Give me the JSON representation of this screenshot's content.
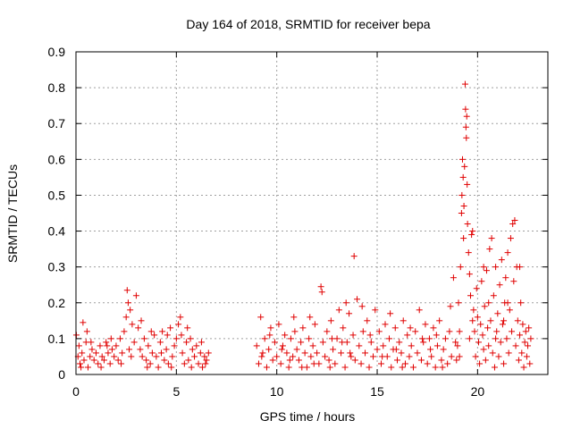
{
  "chart_data": {
    "type": "scatter",
    "title": "Day 164 of 2018, SRMTID for receiver bepa",
    "xlabel": "GPS time / hours",
    "ylabel": "SRMTID / TECUs",
    "xlim": [
      0,
      23.5
    ],
    "ylim": [
      0,
      0.9
    ],
    "xticks": [
      "0",
      "5",
      "10",
      "15",
      "20"
    ],
    "yticks": [
      "0",
      "0.1",
      "0.2",
      "0.3",
      "0.4",
      "0.5",
      "0.6",
      "0.7",
      "0.8",
      "0.9"
    ],
    "grid": true,
    "marker": "+",
    "color": "#e00000",
    "series": [
      {
        "name": "SRMTID",
        "points": [
          [
            0.02,
            0.11
          ],
          [
            0.1,
            0.05
          ],
          [
            0.15,
            0.08
          ],
          [
            0.2,
            0.03
          ],
          [
            0.3,
            0.06
          ],
          [
            0.35,
            0.145
          ],
          [
            0.4,
            0.04
          ],
          [
            0.5,
            0.09
          ],
          [
            0.6,
            0.02
          ],
          [
            0.7,
            0.05
          ],
          [
            0.8,
            0.07
          ],
          [
            0.9,
            0.04
          ],
          [
            1.0,
            0.06
          ],
          [
            1.1,
            0.03
          ],
          [
            1.2,
            0.08
          ],
          [
            1.3,
            0.05
          ],
          [
            1.4,
            0.04
          ],
          [
            1.5,
            0.09
          ],
          [
            1.6,
            0.06
          ],
          [
            1.7,
            0.03
          ],
          [
            1.8,
            0.07
          ],
          [
            1.9,
            0.05
          ],
          [
            2.0,
            0.08
          ],
          [
            2.1,
            0.04
          ],
          [
            2.2,
            0.1
          ],
          [
            2.3,
            0.06
          ],
          [
            2.4,
            0.12
          ],
          [
            2.5,
            0.16
          ],
          [
            2.55,
            0.235
          ],
          [
            2.6,
            0.2
          ],
          [
            2.7,
            0.18
          ],
          [
            2.8,
            0.14
          ],
          [
            2.9,
            0.09
          ],
          [
            3.0,
            0.22
          ],
          [
            3.1,
            0.13
          ],
          [
            3.2,
            0.07
          ],
          [
            3.3,
            0.05
          ],
          [
            3.4,
            0.1
          ],
          [
            3.5,
            0.04
          ],
          [
            3.6,
            0.08
          ],
          [
            3.7,
            0.03
          ],
          [
            3.8,
            0.06
          ],
          [
            3.9,
            0.11
          ],
          [
            4.0,
            0.05
          ],
          [
            4.1,
            0.02
          ],
          [
            4.2,
            0.09
          ],
          [
            4.3,
            0.12
          ],
          [
            4.4,
            0.04
          ],
          [
            4.5,
            0.07
          ],
          [
            4.6,
            0.03
          ],
          [
            4.7,
            0.13
          ],
          [
            4.8,
            0.05
          ],
          [
            4.9,
            0.08
          ],
          [
            5.0,
            0.1
          ],
          [
            5.1,
            0.14
          ],
          [
            5.2,
            0.16
          ],
          [
            5.3,
            0.06
          ],
          [
            5.4,
            0.03
          ],
          [
            5.5,
            0.09
          ],
          [
            5.6,
            0.04
          ],
          [
            5.7,
            0.1
          ],
          [
            5.8,
            0.07
          ],
          [
            5.9,
            0.05
          ],
          [
            6.0,
            0.08
          ],
          [
            6.1,
            0.03
          ],
          [
            6.2,
            0.06
          ],
          [
            6.3,
            0.02
          ],
          [
            6.4,
            0.05
          ],
          [
            6.5,
            0.04
          ],
          [
            6.6,
            0.06
          ],
          [
            0.25,
            0.02
          ],
          [
            0.75,
            0.09
          ],
          [
            1.25,
            0.02
          ],
          [
            1.75,
            0.1
          ],
          [
            2.25,
            0.03
          ],
          [
            2.75,
            0.05
          ],
          [
            3.25,
            0.15
          ],
          [
            3.75,
            0.12
          ],
          [
            4.25,
            0.06
          ],
          [
            4.75,
            0.02
          ],
          [
            5.25,
            0.11
          ],
          [
            5.75,
            0.02
          ],
          [
            6.25,
            0.09
          ],
          [
            0.55,
            0.12
          ],
          [
            1.55,
            0.08
          ],
          [
            2.65,
            0.07
          ],
          [
            3.55,
            0.02
          ],
          [
            4.55,
            0.11
          ],
          [
            5.55,
            0.13
          ],
          [
            6.45,
            0.03
          ],
          [
            9.0,
            0.08
          ],
          [
            9.1,
            0.03
          ],
          [
            9.2,
            0.16
          ],
          [
            9.3,
            0.06
          ],
          [
            9.4,
            0.1
          ],
          [
            9.5,
            0.02
          ],
          [
            9.6,
            0.07
          ],
          [
            9.7,
            0.13
          ],
          [
            9.8,
            0.04
          ],
          [
            9.9,
            0.09
          ],
          [
            10.0,
            0.05
          ],
          [
            10.1,
            0.14
          ],
          [
            10.2,
            0.03
          ],
          [
            10.3,
            0.08
          ],
          [
            10.4,
            0.11
          ],
          [
            10.5,
            0.06
          ],
          [
            10.6,
            0.02
          ],
          [
            10.7,
            0.1
          ],
          [
            10.8,
            0.05
          ],
          [
            10.9,
            0.12
          ],
          [
            11.0,
            0.07
          ],
          [
            11.1,
            0.04
          ],
          [
            11.2,
            0.09
          ],
          [
            11.3,
            0.13
          ],
          [
            11.4,
            0.06
          ],
          [
            11.5,
            0.02
          ],
          [
            11.6,
            0.1
          ],
          [
            11.7,
            0.05
          ],
          [
            11.8,
            0.08
          ],
          [
            11.9,
            0.14
          ],
          [
            12.0,
            0.06
          ],
          [
            12.1,
            0.03
          ],
          [
            12.2,
            0.245
          ],
          [
            12.25,
            0.23
          ],
          [
            12.3,
            0.09
          ],
          [
            12.4,
            0.05
          ],
          [
            12.5,
            0.12
          ],
          [
            12.6,
            0.04
          ],
          [
            12.7,
            0.15
          ],
          [
            12.8,
            0.07
          ],
          [
            12.9,
            0.03
          ],
          [
            13.0,
            0.1
          ],
          [
            13.1,
            0.18
          ],
          [
            13.2,
            0.06
          ],
          [
            13.3,
            0.13
          ],
          [
            13.4,
            0.02
          ],
          [
            13.5,
            0.09
          ],
          [
            13.6,
            0.17
          ],
          [
            13.7,
            0.05
          ],
          [
            13.8,
            0.11
          ],
          [
            13.85,
            0.33
          ],
          [
            13.9,
            0.04
          ],
          [
            14.0,
            0.21
          ],
          [
            14.1,
            0.08
          ],
          [
            14.2,
            0.03
          ],
          [
            14.3,
            0.12
          ],
          [
            14.4,
            0.06
          ],
          [
            14.5,
            0.15
          ],
          [
            14.6,
            0.02
          ],
          [
            14.7,
            0.09
          ],
          [
            14.8,
            0.05
          ],
          [
            14.9,
            0.18
          ],
          [
            15.0,
            0.07
          ],
          [
            15.1,
            0.12
          ],
          [
            15.2,
            0.03
          ],
          [
            15.3,
            0.08
          ],
          [
            15.4,
            0.14
          ],
          [
            15.5,
            0.05
          ],
          [
            15.6,
            0.1
          ],
          [
            15.7,
            0.02
          ],
          [
            15.8,
            0.07
          ],
          [
            15.9,
            0.13
          ],
          [
            16.0,
            0.04
          ],
          [
            16.1,
            0.09
          ],
          [
            16.2,
            0.06
          ],
          [
            16.3,
            0.15
          ],
          [
            16.4,
            0.03
          ],
          [
            16.5,
            0.11
          ],
          [
            16.6,
            0.05
          ],
          [
            16.7,
            0.08
          ],
          [
            16.8,
            0.02
          ],
          [
            16.9,
            0.12
          ],
          [
            17.0,
            0.06
          ],
          [
            17.1,
            0.18
          ],
          [
            17.2,
            0.04
          ],
          [
            17.3,
            0.09
          ],
          [
            17.4,
            0.14
          ],
          [
            17.5,
            0.03
          ],
          [
            17.6,
            0.1
          ],
          [
            17.7,
            0.05
          ],
          [
            17.8,
            0.13
          ],
          [
            17.9,
            0.02
          ],
          [
            18.0,
            0.08
          ],
          [
            18.1,
            0.15
          ],
          [
            18.2,
            0.04
          ],
          [
            18.3,
            0.07
          ],
          [
            18.4,
            0.1
          ],
          [
            18.5,
            0.03
          ],
          [
            18.6,
            0.12
          ],
          [
            18.7,
            0.05
          ],
          [
            18.8,
            0.27
          ],
          [
            18.9,
            0.09
          ],
          [
            9.25,
            0.05
          ],
          [
            10.25,
            0.07
          ],
          [
            11.25,
            0.02
          ],
          [
            12.75,
            0.1
          ],
          [
            13.25,
            0.09
          ],
          [
            14.25,
            0.19
          ],
          [
            15.25,
            0.05
          ],
          [
            16.25,
            0.02
          ],
          [
            17.25,
            0.1
          ],
          [
            18.25,
            0.02
          ],
          [
            9.65,
            0.11
          ],
          [
            10.65,
            0.04
          ],
          [
            11.65,
            0.16
          ],
          [
            12.65,
            0.02
          ],
          [
            13.65,
            0.06
          ],
          [
            14.65,
            0.11
          ],
          [
            15.65,
            0.17
          ],
          [
            16.65,
            0.13
          ],
          [
            17.65,
            0.07
          ],
          [
            18.65,
            0.19
          ],
          [
            10.85,
            0.16
          ],
          [
            11.85,
            0.03
          ],
          [
            13.45,
            0.2
          ],
          [
            15.95,
            0.07
          ],
          [
            17.95,
            0.11
          ],
          [
            18.95,
            0.04
          ],
          [
            19.0,
            0.08
          ],
          [
            19.05,
            0.2
          ],
          [
            19.1,
            0.12
          ],
          [
            19.15,
            0.3
          ],
          [
            19.2,
            0.45
          ],
          [
            19.22,
            0.5
          ],
          [
            19.25,
            0.6
          ],
          [
            19.28,
            0.55
          ],
          [
            19.3,
            0.38
          ],
          [
            19.32,
            0.47
          ],
          [
            19.35,
            0.58
          ],
          [
            19.38,
            0.81
          ],
          [
            19.4,
            0.74
          ],
          [
            19.42,
            0.69
          ],
          [
            19.44,
            0.66
          ],
          [
            19.46,
            0.72
          ],
          [
            19.48,
            0.53
          ],
          [
            19.5,
            0.42
          ],
          [
            19.55,
            0.34
          ],
          [
            19.6,
            0.28
          ],
          [
            19.65,
            0.22
          ],
          [
            19.7,
            0.39
          ],
          [
            19.75,
            0.4
          ],
          [
            19.8,
            0.18
          ],
          [
            19.85,
            0.12
          ],
          [
            19.9,
            0.05
          ],
          [
            19.95,
            0.24
          ],
          [
            20.0,
            0.16
          ],
          [
            20.05,
            0.09
          ],
          [
            20.1,
            0.03
          ],
          [
            20.15,
            0.14
          ],
          [
            20.2,
            0.26
          ],
          [
            20.25,
            0.11
          ],
          [
            20.3,
            0.07
          ],
          [
            20.35,
            0.19
          ],
          [
            20.4,
            0.04
          ],
          [
            20.45,
            0.29
          ],
          [
            20.5,
            0.13
          ],
          [
            20.55,
            0.08
          ],
          [
            20.6,
            0.35
          ],
          [
            20.65,
            0.15
          ],
          [
            20.7,
            0.38
          ],
          [
            20.75,
            0.06
          ],
          [
            20.8,
            0.22
          ],
          [
            20.85,
            0.02
          ],
          [
            20.9,
            0.3
          ],
          [
            20.95,
            0.12
          ],
          [
            21.0,
            0.17
          ],
          [
            21.05,
            0.05
          ],
          [
            21.1,
            0.25
          ],
          [
            21.15,
            0.09
          ],
          [
            21.2,
            0.32
          ],
          [
            21.25,
            0.14
          ],
          [
            21.3,
            0.03
          ],
          [
            21.35,
            0.2
          ],
          [
            21.4,
            0.27
          ],
          [
            21.45,
            0.1
          ],
          [
            21.5,
            0.34
          ],
          [
            21.55,
            0.06
          ],
          [
            21.6,
            0.18
          ],
          [
            21.65,
            0.38
          ],
          [
            21.7,
            0.12
          ],
          [
            21.75,
            0.42
          ],
          [
            21.8,
            0.26
          ],
          [
            21.85,
            0.43
          ],
          [
            21.9,
            0.08
          ],
          [
            21.95,
            0.3
          ],
          [
            22.0,
            0.15
          ],
          [
            22.05,
            0.04
          ],
          [
            22.1,
            0.11
          ],
          [
            22.15,
            0.2
          ],
          [
            22.2,
            0.06
          ],
          [
            22.25,
            0.14
          ],
          [
            22.3,
            0.02
          ],
          [
            22.35,
            0.09
          ],
          [
            22.4,
            0.12
          ],
          [
            22.45,
            0.05
          ],
          [
            22.5,
            0.08
          ],
          [
            22.55,
            0.13
          ],
          [
            22.6,
            0.03
          ],
          [
            22.65,
            0.1
          ],
          [
            19.1,
            0.05
          ],
          [
            19.6,
            0.1
          ],
          [
            20.3,
            0.3
          ],
          [
            20.9,
            0.1
          ],
          [
            21.5,
            0.2
          ],
          [
            22.1,
            0.3
          ],
          [
            19.75,
            0.15
          ],
          [
            20.55,
            0.2
          ],
          [
            21.3,
            0.15
          ]
        ]
      }
    ]
  }
}
